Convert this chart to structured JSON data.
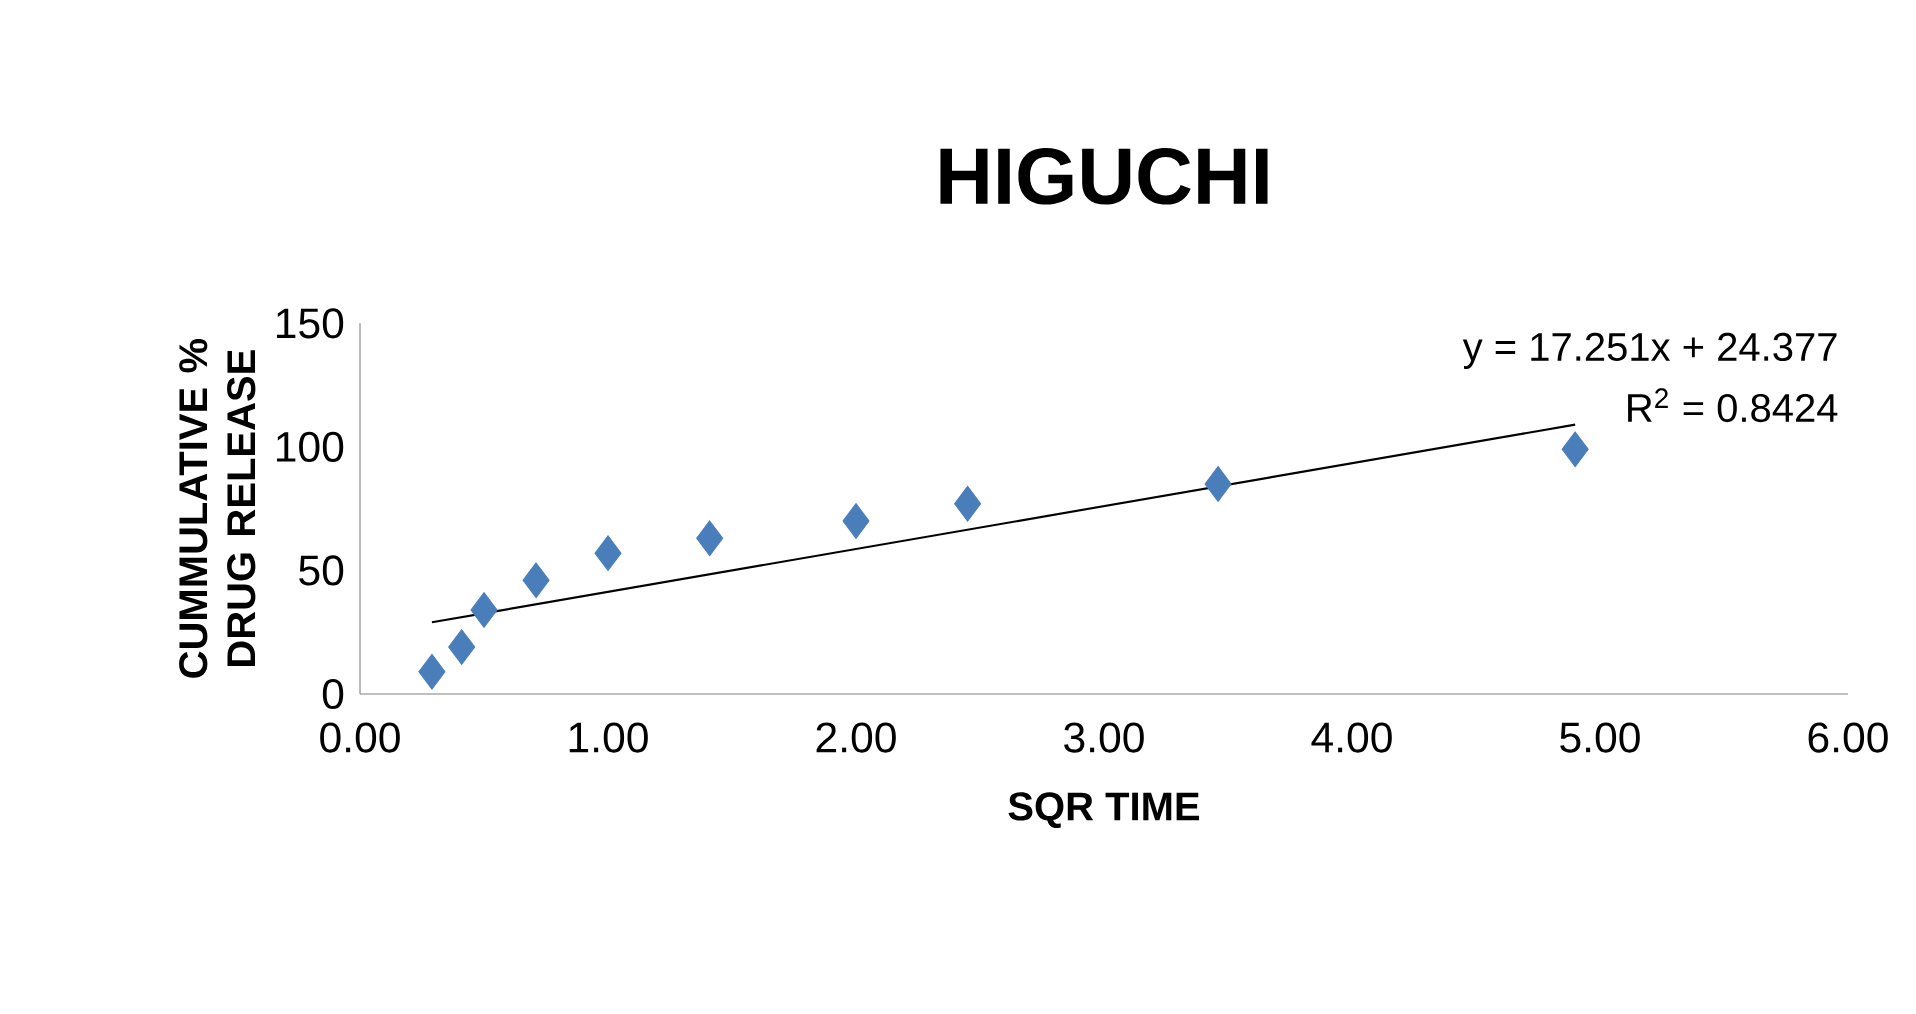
{
  "chart_data": {
    "type": "scatter",
    "title": "HIGUCHI",
    "xlabel": "SQR TIME",
    "ylabel": "CUMMULATIVE % DRUG RELEASE",
    "xlim": [
      0,
      6
    ],
    "ylim": [
      0,
      150
    ],
    "xticks": [
      {
        "value": 0,
        "label": "0.00"
      },
      {
        "value": 1,
        "label": "1.00"
      },
      {
        "value": 2,
        "label": "2.00"
      },
      {
        "value": 3,
        "label": "3.00"
      },
      {
        "value": 4,
        "label": "4.00"
      },
      {
        "value": 5,
        "label": "5.00"
      },
      {
        "value": 6,
        "label": "6.00"
      }
    ],
    "yticks": [
      0,
      50,
      100,
      150
    ],
    "marker": "diamond",
    "grid": false,
    "series": [
      {
        "color": "#4a7ebb",
        "x": [
          0.29,
          0.41,
          0.5,
          0.71,
          1.0,
          1.41,
          2.0,
          2.45,
          3.46,
          4.9
        ],
        "values": [
          9,
          19,
          34,
          46,
          57,
          63,
          70,
          77,
          85,
          99
        ]
      },
      {
        "type": "line",
        "color": "#000000",
        "marker": "none",
        "x": [
          0.29,
          4.9
        ],
        "values": [
          29,
          109
        ]
      }
    ],
    "annotations": [
      "y = 17.251x + 24.377",
      "R$^{2}$ = 0.8424"
    ]
  }
}
